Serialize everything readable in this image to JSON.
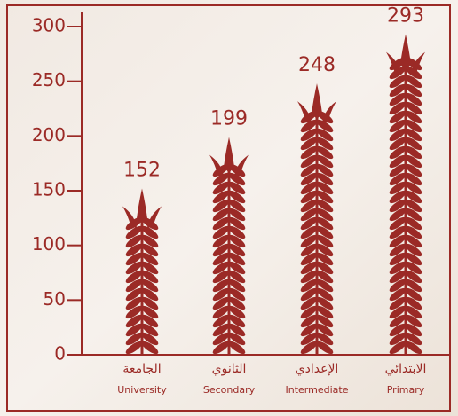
{
  "chart_data": {
    "type": "pictograph",
    "categories": [
      "University",
      "Secondary",
      "Intermediate",
      "Primary"
    ],
    "categories_ar": [
      "الجامعة",
      "الثانوي",
      "الإعدادي",
      "الابتدائي"
    ],
    "values": [
      152,
      199,
      248,
      293
    ],
    "color": "#9b2a26",
    "ylim": [
      0,
      300
    ],
    "yticks": [
      0,
      50,
      100,
      150,
      200,
      250,
      300
    ]
  }
}
